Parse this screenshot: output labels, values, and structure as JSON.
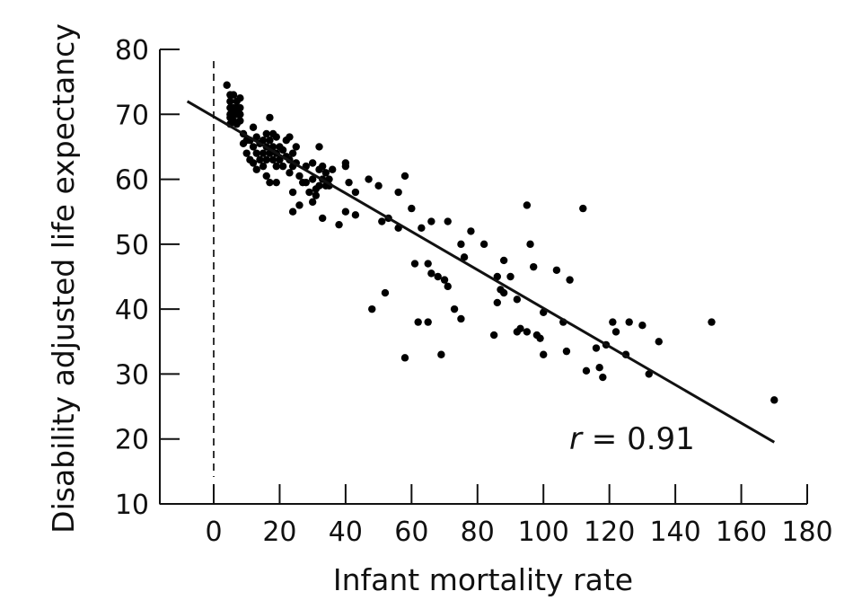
{
  "chart_data": {
    "type": "scatter",
    "xlabel": "Infant mortality rate",
    "ylabel": "Disability adjusted life expectancy",
    "xlim": [
      -17,
      180
    ],
    "ylim": [
      10,
      80
    ],
    "xticks": [
      0,
      20,
      40,
      60,
      80,
      100,
      120,
      140,
      160,
      180
    ],
    "yticks": [
      10,
      20,
      30,
      40,
      50,
      60,
      70,
      80
    ],
    "reference_line": {
      "x": 0,
      "style": "dashed"
    },
    "fit_line": {
      "x": [
        -8,
        170
      ],
      "y": [
        72,
        19.5
      ]
    },
    "annotation": {
      "italic": "r",
      "text": " = 0.91"
    },
    "grid": false,
    "legend": "none",
    "points": [
      [
        4,
        74.5
      ],
      [
        5,
        73
      ],
      [
        5,
        72
      ],
      [
        5,
        71
      ],
      [
        5,
        70
      ],
      [
        5,
        69.5
      ],
      [
        5,
        68.5
      ],
      [
        6,
        73
      ],
      [
        6,
        71
      ],
      [
        6,
        70
      ],
      [
        6,
        69
      ],
      [
        7,
        72
      ],
      [
        7,
        71
      ],
      [
        7,
        70
      ],
      [
        7,
        68.5
      ],
      [
        8,
        72.5
      ],
      [
        8,
        71
      ],
      [
        8,
        70
      ],
      [
        8,
        69
      ],
      [
        9,
        67
      ],
      [
        9,
        65.5
      ],
      [
        10,
        66
      ],
      [
        10,
        64
      ],
      [
        11,
        66
      ],
      [
        11,
        63
      ],
      [
        12,
        68
      ],
      [
        12,
        65
      ],
      [
        12,
        62.5
      ],
      [
        13,
        66.5
      ],
      [
        13,
        64
      ],
      [
        13,
        61.5
      ],
      [
        14,
        65.5
      ],
      [
        14,
        63
      ],
      [
        15,
        66
      ],
      [
        15,
        64
      ],
      [
        15,
        62
      ],
      [
        16,
        67
      ],
      [
        16,
        65
      ],
      [
        16,
        63
      ],
      [
        16,
        60.5
      ],
      [
        17,
        69.5
      ],
      [
        17,
        66
      ],
      [
        17,
        64
      ],
      [
        17,
        59.5
      ],
      [
        18,
        67
      ],
      [
        18,
        65
      ],
      [
        18,
        63
      ],
      [
        19,
        66.5
      ],
      [
        19,
        64
      ],
      [
        19,
        62
      ],
      [
        19,
        59.5
      ],
      [
        20,
        65
      ],
      [
        20,
        63
      ],
      [
        21,
        64.5
      ],
      [
        21,
        62
      ],
      [
        22,
        66
      ],
      [
        22,
        63.5
      ],
      [
        23,
        66.5
      ],
      [
        23,
        63
      ],
      [
        23,
        61
      ],
      [
        24,
        64
      ],
      [
        24,
        62
      ],
      [
        24,
        58
      ],
      [
        24,
        55
      ],
      [
        25,
        65
      ],
      [
        25,
        62.5
      ],
      [
        26,
        60.5
      ],
      [
        26,
        56
      ],
      [
        27,
        59.5
      ],
      [
        28,
        62
      ],
      [
        28,
        59.5
      ],
      [
        29,
        58
      ],
      [
        30,
        62.5
      ],
      [
        30,
        60
      ],
      [
        30,
        56.5
      ],
      [
        31,
        58.5
      ],
      [
        31,
        57.5
      ],
      [
        32,
        65
      ],
      [
        32,
        61.5
      ],
      [
        32,
        59
      ],
      [
        33,
        62
      ],
      [
        33,
        60
      ],
      [
        33,
        54
      ],
      [
        34,
        61
      ],
      [
        34,
        59
      ],
      [
        35,
        60
      ],
      [
        35,
        59
      ],
      [
        36,
        61.5
      ],
      [
        38,
        53
      ],
      [
        40,
        62.5
      ],
      [
        40,
        62
      ],
      [
        40,
        55
      ],
      [
        41,
        59.5
      ],
      [
        43,
        58
      ],
      [
        43,
        54.5
      ],
      [
        47,
        60
      ],
      [
        48,
        40
      ],
      [
        50,
        59
      ],
      [
        51,
        53.5
      ],
      [
        52,
        42.5
      ],
      [
        53,
        54
      ],
      [
        56,
        58
      ],
      [
        56,
        52.5
      ],
      [
        58,
        60.5
      ],
      [
        58,
        32.5
      ],
      [
        60,
        55.5
      ],
      [
        61,
        47
      ],
      [
        62,
        38
      ],
      [
        63,
        52.5
      ],
      [
        65,
        47
      ],
      [
        65,
        38
      ],
      [
        66,
        53.5
      ],
      [
        66,
        45.5
      ],
      [
        68,
        45
      ],
      [
        69,
        33
      ],
      [
        70,
        44.5
      ],
      [
        71,
        43.5
      ],
      [
        71,
        53.5
      ],
      [
        73,
        40
      ],
      [
        75,
        50
      ],
      [
        75,
        38.5
      ],
      [
        76,
        48
      ],
      [
        78,
        52
      ],
      [
        82,
        50
      ],
      [
        85,
        36
      ],
      [
        86,
        45
      ],
      [
        86,
        41
      ],
      [
        87,
        43
      ],
      [
        88,
        42.5
      ],
      [
        88,
        47.5
      ],
      [
        90,
        45
      ],
      [
        92,
        36.5
      ],
      [
        92,
        41.5
      ],
      [
        93,
        37
      ],
      [
        95,
        56
      ],
      [
        95,
        36.5
      ],
      [
        96,
        50
      ],
      [
        97,
        46.5
      ],
      [
        98,
        36
      ],
      [
        99,
        35.5
      ],
      [
        100,
        33
      ],
      [
        100,
        39.5
      ],
      [
        104,
        46
      ],
      [
        106,
        38
      ],
      [
        107,
        33.5
      ],
      [
        108,
        44.5
      ],
      [
        112,
        55.5
      ],
      [
        113,
        30.5
      ],
      [
        116,
        34
      ],
      [
        117,
        31
      ],
      [
        118,
        29.5
      ],
      [
        119,
        34.5
      ],
      [
        121,
        38
      ],
      [
        122,
        36.5
      ],
      [
        125,
        33
      ],
      [
        126,
        38
      ],
      [
        130,
        37.5
      ],
      [
        132,
        30
      ],
      [
        135,
        35
      ],
      [
        151,
        38
      ],
      [
        170,
        26
      ]
    ]
  }
}
